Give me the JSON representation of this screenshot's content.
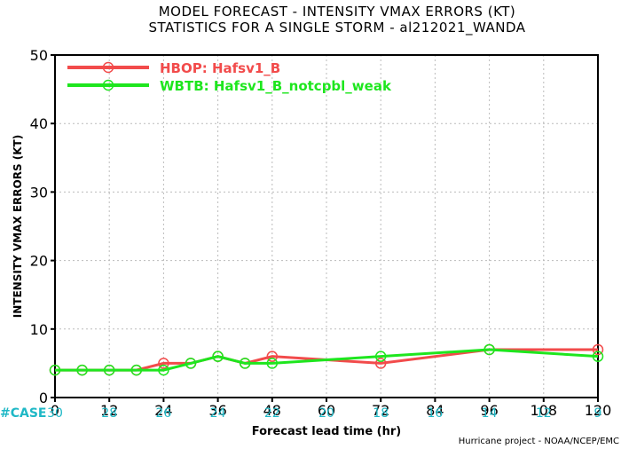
{
  "title_line1": "MODEL FORECAST - INTENSITY VMAX ERRORS (KT)",
  "title_line2": "STATISTICS FOR A SINGLE STORM - al212021_WANDA",
  "credit": "Hurricane project - NOAA/NCEP/EMC",
  "case_label": "#CASE",
  "chart_data": {
    "type": "line",
    "xlabel": "Forecast lead time (hr)",
    "ylabel": "INTENSITY VMAX ERRORS (KT)",
    "xlim": [
      0,
      120
    ],
    "ylim": [
      0,
      50
    ],
    "xticks": [
      0,
      12,
      24,
      36,
      48,
      60,
      72,
      84,
      96,
      108,
      120
    ],
    "yticks": [
      0,
      10,
      20,
      30,
      40,
      50
    ],
    "grid": true,
    "legend_position": "top-left",
    "case_counts": [
      {
        "x": 0,
        "n": "30"
      },
      {
        "x": 12,
        "n": "28"
      },
      {
        "x": 24,
        "n": "26"
      },
      {
        "x": 36,
        "n": "24"
      },
      {
        "x": 48,
        "n": "22"
      },
      {
        "x": 60,
        "n": "20"
      },
      {
        "x": 72,
        "n": "18"
      },
      {
        "x": 84,
        "n": "16"
      },
      {
        "x": 96,
        "n": "14"
      },
      {
        "x": 108,
        "n": "12"
      },
      {
        "x": 120,
        "n": "9"
      }
    ],
    "series": [
      {
        "name": "HBOP: Hafsv1_B",
        "color": "#f24b4b",
        "x": [
          0,
          6,
          12,
          18,
          24,
          30,
          36,
          42,
          48,
          72,
          96,
          120
        ],
        "y": [
          4,
          4,
          4,
          4,
          5,
          5,
          6,
          5,
          6,
          5,
          7,
          7
        ]
      },
      {
        "name": "WBTB: Hafsv1_B_notcpbl_weak",
        "color": "#1ee61e",
        "x": [
          0,
          6,
          12,
          18,
          24,
          30,
          36,
          42,
          48,
          72,
          96,
          120
        ],
        "y": [
          4,
          4,
          4,
          4,
          4,
          5,
          6,
          5,
          5,
          6,
          7,
          6
        ]
      }
    ]
  }
}
